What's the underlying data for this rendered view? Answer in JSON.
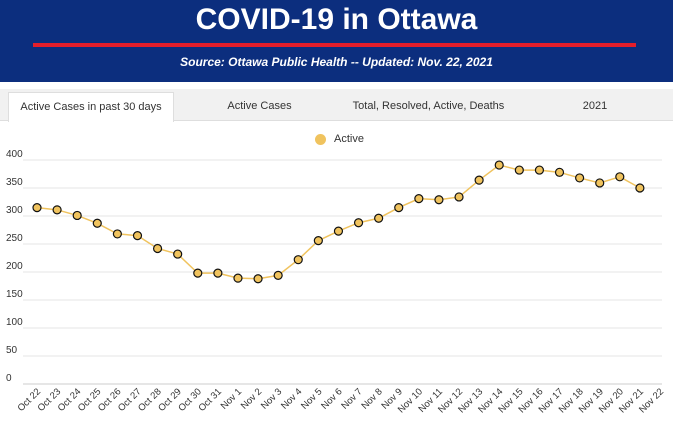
{
  "header": {
    "title": "COVID-19 in Ottawa",
    "subtitle": "Source:  Ottawa Public Health -- Updated:  Nov. 22, 2021"
  },
  "tabs": [
    {
      "label": "Active Cases in past 30 days",
      "active": true
    },
    {
      "label": "Active Cases",
      "active": false
    },
    {
      "label": "Total, Resolved, Active, Deaths",
      "active": false
    },
    {
      "label": "2021",
      "active": false
    }
  ],
  "colors": {
    "header_bg": "#0c2e7e",
    "accent_red": "#e41e2b",
    "series_fill": "#f0c35e",
    "series_line": "#f0c35e",
    "marker_stroke": "#111111"
  },
  "chart_data": {
    "type": "line",
    "legend": {
      "position": "top-center",
      "entries": [
        "Active"
      ]
    },
    "grid": true,
    "ylim": [
      0,
      400
    ],
    "yticks": [
      0,
      50,
      100,
      150,
      200,
      250,
      300,
      350,
      400
    ],
    "categories": [
      "Oct 22",
      "Oct 23",
      "Oct 24",
      "Oct 25",
      "Oct 26",
      "Oct 27",
      "Oct 28",
      "Oct 29",
      "Oct 30",
      "Oct 31",
      "Nov 1",
      "Nov 2",
      "Nov 3",
      "Nov 4",
      "Nov 5",
      "Nov 6",
      "Nov 7",
      "Nov 8",
      "Nov 9",
      "Nov 10",
      "Nov 11",
      "Nov 12",
      "Nov 13",
      "Nov 14",
      "Nov 15",
      "Nov 16",
      "Nov 17",
      "Nov 18",
      "Nov 19",
      "Nov 20",
      "Nov 21",
      "Nov 22"
    ],
    "series": [
      {
        "name": "Active",
        "values": [
          315,
          311,
          301,
          287,
          268,
          265,
          242,
          232,
          198,
          198,
          189,
          188,
          194,
          222,
          256,
          273,
          288,
          296,
          315,
          331,
          329,
          334,
          364,
          391,
          382,
          382,
          378,
          368,
          359,
          370,
          350,
          null
        ]
      }
    ]
  }
}
